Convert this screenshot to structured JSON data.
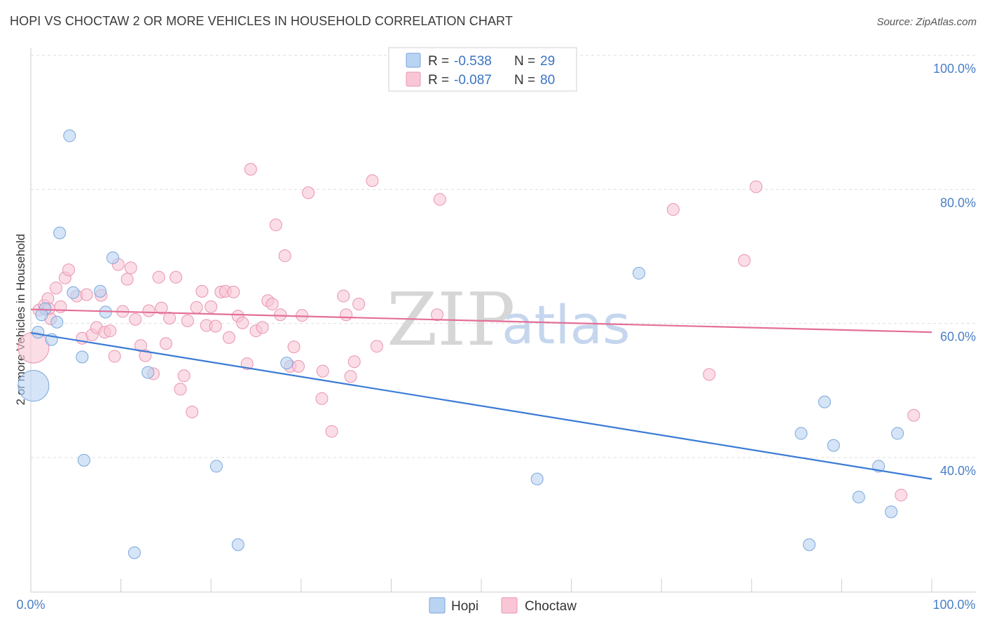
{
  "title": "HOPI VS CHOCTAW 2 OR MORE VEHICLES IN HOUSEHOLD CORRELATION CHART",
  "source": "Source: ZipAtlas.com",
  "watermark": {
    "zip": "ZIP",
    "atlas": "atlas"
  },
  "legend": {
    "rows": [
      {
        "r_label": "R = ",
        "r_value": "-0.538",
        "n_label": "N = ",
        "n_value": "29"
      },
      {
        "r_label": "R = ",
        "r_value": "-0.087",
        "n_label": "N = ",
        "n_value": "80"
      }
    ]
  },
  "bottom_legend": {
    "hopi": "Hopi",
    "choctaw": "Choctaw"
  },
  "colors": {
    "hopi_fill": "#b9d3f2",
    "hopi_stroke": "#7aa6dc",
    "hopi_line": "#3a7bd5",
    "choctaw_fill": "#f9c6d6",
    "choctaw_stroke": "#e994b0",
    "choctaw_line": "#e36f98",
    "grid": "#dddddd",
    "axis_text": "#4a7fc7"
  },
  "chart_data": {
    "type": "scatter",
    "title": "HOPI VS CHOCTAW 2 OR MORE VEHICLES IN HOUSEHOLD CORRELATION CHART",
    "xlabel": "",
    "ylabel": "2 or more Vehicles in Household",
    "xlim": [
      0,
      100
    ],
    "ylim": [
      20,
      102
    ],
    "x_tick_labels": [
      "0.0%",
      "100.0%"
    ],
    "y_ticks": [
      40,
      60,
      80,
      100
    ],
    "y_tick_labels": [
      "40.0%",
      "60.0%",
      "80.0%",
      "100.0%"
    ],
    "series": [
      {
        "name": "Hopi",
        "R": -0.538,
        "N": 29,
        "trend": {
          "x": [
            0,
            100
          ],
          "y": [
            58.6,
            36.8
          ]
        },
        "points": [
          {
            "x": 4.3,
            "y": 88.0
          },
          {
            "x": 3.2,
            "y": 73.5
          },
          {
            "x": 9.1,
            "y": 69.8
          },
          {
            "x": 7.7,
            "y": 64.8
          },
          {
            "x": 4.7,
            "y": 64.6
          },
          {
            "x": 1.6,
            "y": 62.2
          },
          {
            "x": 1.2,
            "y": 61.3
          },
          {
            "x": 8.3,
            "y": 61.7
          },
          {
            "x": 2.9,
            "y": 60.2
          },
          {
            "x": 0.8,
            "y": 58.7
          },
          {
            "x": 2.3,
            "y": 57.6
          },
          {
            "x": 5.7,
            "y": 55.0
          },
          {
            "x": 13.0,
            "y": 52.7
          },
          {
            "x": 0.3,
            "y": 50.7,
            "big": true
          },
          {
            "x": 5.9,
            "y": 39.6
          },
          {
            "x": 20.6,
            "y": 38.7
          },
          {
            "x": 11.5,
            "y": 25.8
          },
          {
            "x": 23.0,
            "y": 27.0
          },
          {
            "x": 28.4,
            "y": 54.1
          },
          {
            "x": 67.5,
            "y": 67.5
          },
          {
            "x": 56.2,
            "y": 36.8
          },
          {
            "x": 88.1,
            "y": 48.3
          },
          {
            "x": 85.5,
            "y": 43.6
          },
          {
            "x": 89.1,
            "y": 41.8
          },
          {
            "x": 96.2,
            "y": 43.6
          },
          {
            "x": 94.1,
            "y": 38.7
          },
          {
            "x": 91.9,
            "y": 34.1
          },
          {
            "x": 95.5,
            "y": 31.9
          },
          {
            "x": 86.4,
            "y": 27.0
          }
        ]
      },
      {
        "name": "Choctaw",
        "R": -0.087,
        "N": 80,
        "trend": {
          "x": [
            0,
            100
          ],
          "y": [
            62.1,
            58.7
          ]
        },
        "points": [
          {
            "x": 0.3,
            "y": 56.4,
            "big": true
          },
          {
            "x": 0.9,
            "y": 62.0
          },
          {
            "x": 1.5,
            "y": 62.7
          },
          {
            "x": 1.9,
            "y": 63.7
          },
          {
            "x": 2.2,
            "y": 60.7
          },
          {
            "x": 2.8,
            "y": 65.3
          },
          {
            "x": 3.3,
            "y": 62.5
          },
          {
            "x": 3.8,
            "y": 66.8
          },
          {
            "x": 4.2,
            "y": 68.0
          },
          {
            "x": 5.1,
            "y": 64.1
          },
          {
            "x": 5.7,
            "y": 57.8
          },
          {
            "x": 6.2,
            "y": 64.3
          },
          {
            "x": 6.8,
            "y": 58.3
          },
          {
            "x": 7.3,
            "y": 59.4
          },
          {
            "x": 7.8,
            "y": 64.2
          },
          {
            "x": 8.2,
            "y": 58.7
          },
          {
            "x": 8.8,
            "y": 58.9
          },
          {
            "x": 9.3,
            "y": 55.1
          },
          {
            "x": 9.7,
            "y": 68.8
          },
          {
            "x": 10.2,
            "y": 61.8
          },
          {
            "x": 10.7,
            "y": 66.6
          },
          {
            "x": 11.1,
            "y": 68.3
          },
          {
            "x": 11.6,
            "y": 60.6
          },
          {
            "x": 12.2,
            "y": 56.7
          },
          {
            "x": 12.7,
            "y": 55.2
          },
          {
            "x": 13.1,
            "y": 61.9
          },
          {
            "x": 13.6,
            "y": 52.5
          },
          {
            "x": 14.2,
            "y": 66.9
          },
          {
            "x": 14.5,
            "y": 62.3
          },
          {
            "x": 15.0,
            "y": 57.0
          },
          {
            "x": 15.4,
            "y": 60.8
          },
          {
            "x": 16.1,
            "y": 66.9
          },
          {
            "x": 16.6,
            "y": 50.2
          },
          {
            "x": 17.0,
            "y": 52.2
          },
          {
            "x": 17.4,
            "y": 60.4
          },
          {
            "x": 17.9,
            "y": 46.8
          },
          {
            "x": 18.4,
            "y": 62.4
          },
          {
            "x": 19.0,
            "y": 64.8
          },
          {
            "x": 19.5,
            "y": 59.7
          },
          {
            "x": 20.0,
            "y": 62.5
          },
          {
            "x": 20.5,
            "y": 59.6
          },
          {
            "x": 21.1,
            "y": 64.7
          },
          {
            "x": 21.6,
            "y": 64.8
          },
          {
            "x": 22.0,
            "y": 57.9
          },
          {
            "x": 22.5,
            "y": 64.7
          },
          {
            "x": 23.0,
            "y": 61.1
          },
          {
            "x": 23.5,
            "y": 60.1
          },
          {
            "x": 24.0,
            "y": 54.0
          },
          {
            "x": 24.4,
            "y": 83.0
          },
          {
            "x": 25.0,
            "y": 58.9
          },
          {
            "x": 25.7,
            "y": 59.4
          },
          {
            "x": 26.3,
            "y": 63.4
          },
          {
            "x": 26.8,
            "y": 62.9
          },
          {
            "x": 27.2,
            "y": 74.7
          },
          {
            "x": 27.7,
            "y": 61.3
          },
          {
            "x": 28.2,
            "y": 70.1
          },
          {
            "x": 28.8,
            "y": 53.6
          },
          {
            "x": 29.2,
            "y": 56.5
          },
          {
            "x": 29.7,
            "y": 53.6
          },
          {
            "x": 30.1,
            "y": 61.2
          },
          {
            "x": 30.8,
            "y": 79.5
          },
          {
            "x": 32.3,
            "y": 48.8
          },
          {
            "x": 32.4,
            "y": 52.9
          },
          {
            "x": 33.4,
            "y": 43.9
          },
          {
            "x": 34.7,
            "y": 64.1
          },
          {
            "x": 35.0,
            "y": 61.3
          },
          {
            "x": 35.5,
            "y": 52.1
          },
          {
            "x": 35.9,
            "y": 54.3
          },
          {
            "x": 36.4,
            "y": 62.9
          },
          {
            "x": 37.9,
            "y": 81.3
          },
          {
            "x": 38.4,
            "y": 56.6
          },
          {
            "x": 45.4,
            "y": 78.5
          },
          {
            "x": 45.1,
            "y": 61.3
          },
          {
            "x": 71.3,
            "y": 77.0
          },
          {
            "x": 75.3,
            "y": 52.4
          },
          {
            "x": 79.2,
            "y": 69.4
          },
          {
            "x": 80.5,
            "y": 80.4
          },
          {
            "x": 96.6,
            "y": 34.4
          },
          {
            "x": 98.0,
            "y": 46.3
          },
          {
            "x": 2.0,
            "y": 62.2
          }
        ]
      }
    ]
  }
}
